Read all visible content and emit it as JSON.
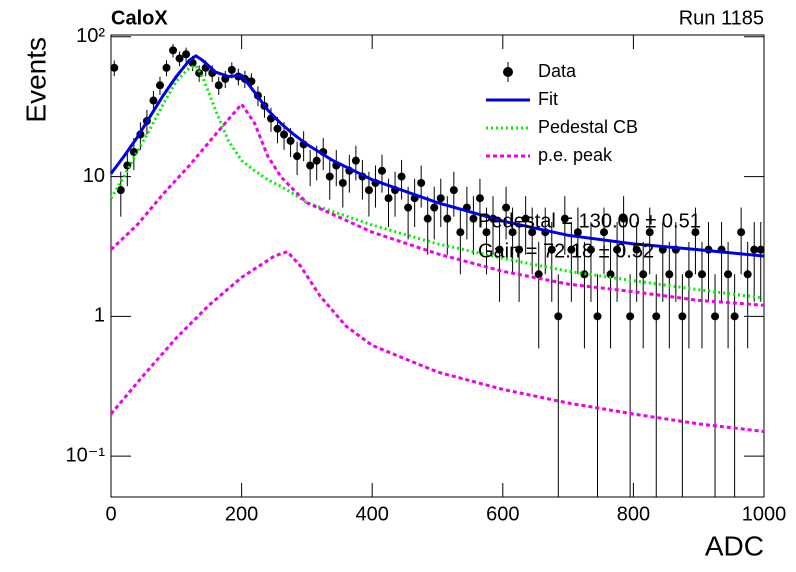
{
  "chart_data": {
    "type": "scatter",
    "title": "CaloX",
    "subtitle": "Run 1185",
    "x_label": "ADC",
    "y_label": "Events",
    "annotations": [
      "Pedestal = 130.00 ± 0.51",
      "Gain = 72.18 ± 0.52"
    ],
    "log_y": true,
    "legend": "upper right",
    "xlim": [
      0,
      1000
    ],
    "ylim": [
      0.051,
      103
    ],
    "xticks": [
      0,
      200,
      400,
      600,
      800,
      1000
    ],
    "yticks": [
      {
        "value": 0.1,
        "label": "10⁻¹"
      },
      1,
      10,
      {
        "value": 100,
        "label": "10²"
      }
    ],
    "series": [
      {
        "name": "Data",
        "kind": "points",
        "color": "#000000",
        "x": [
          5,
          15,
          25,
          35,
          45,
          55,
          65,
          75,
          85,
          95,
          105,
          115,
          125,
          135,
          145,
          155,
          165,
          175,
          185,
          195,
          205,
          215,
          225,
          235,
          245,
          255,
          265,
          275,
          285,
          295,
          305,
          315,
          325,
          335,
          345,
          355,
          365,
          375,
          385,
          395,
          405,
          415,
          425,
          435,
          445,
          455,
          465,
          475,
          485,
          495,
          505,
          515,
          525,
          535,
          545,
          555,
          565,
          575,
          585,
          595,
          605,
          615,
          625,
          635,
          645,
          655,
          665,
          675,
          685,
          695,
          705,
          715,
          725,
          735,
          745,
          755,
          765,
          775,
          785,
          795,
          805,
          815,
          825,
          835,
          845,
          855,
          865,
          875,
          885,
          895,
          905,
          915,
          925,
          935,
          945,
          955,
          965,
          975,
          985,
          995
        ],
        "values": [
          60,
          8,
          12,
          15,
          20,
          25,
          35,
          45,
          60,
          80,
          70,
          75,
          65,
          55,
          60,
          55,
          45,
          50,
          58,
          52,
          50,
          48,
          38,
          32,
          26,
          22,
          20,
          18,
          14,
          17,
          12,
          13,
          15,
          10,
          12,
          9,
          11,
          13,
          10,
          8,
          9,
          11,
          7,
          8,
          10,
          6,
          7,
          9,
          5,
          6,
          7,
          5,
          8,
          4,
          6,
          5,
          7,
          4,
          5,
          3,
          6,
          4,
          3,
          5,
          4,
          2,
          4,
          3,
          1,
          5,
          3,
          4,
          2,
          3,
          1,
          4,
          2,
          3,
          5,
          1,
          3,
          2,
          4,
          1,
          3,
          2,
          3,
          1,
          2,
          4,
          2,
          3,
          1,
          3,
          2,
          1,
          4,
          2,
          3,
          3
        ],
        "errors": [
          7.75,
          2.83,
          3.46,
          3.87,
          4.47,
          5,
          5.92,
          6.71,
          7.75,
          8.94,
          8.37,
          8.66,
          8.06,
          7.42,
          7.75,
          7.42,
          6.71,
          7.07,
          7.62,
          7.21,
          7.07,
          6.93,
          6.16,
          5.66,
          5.1,
          4.69,
          4.47,
          4.24,
          3.74,
          4.12,
          3.46,
          3.61,
          3.87,
          3.16,
          3.46,
          3,
          3.32,
          3.61,
          3.16,
          2.83,
          3,
          3.32,
          2.65,
          2.83,
          3.16,
          2.45,
          2.65,
          3,
          2.24,
          2.45,
          2.65,
          2.24,
          2.83,
          2,
          2.45,
          2.24,
          2.65,
          2,
          2.24,
          1.73,
          2.45,
          2,
          1.73,
          2.24,
          2,
          1.41,
          2,
          1.73,
          1,
          2.24,
          1.73,
          2,
          1.41,
          1.73,
          1,
          2,
          1.41,
          1.73,
          2.24,
          1,
          1.73,
          1.41,
          2,
          1,
          1.73,
          1.41,
          1.73,
          1,
          1.41,
          2,
          1.41,
          1.73,
          1,
          1.73,
          1.41,
          1,
          2,
          1.41,
          1.73,
          1.73
        ]
      },
      {
        "name": "Fit",
        "kind": "line",
        "color": "#0000e6",
        "dash": "",
        "x": [
          0,
          20,
          40,
          60,
          80,
          100,
          120,
          130,
          140,
          160,
          180,
          200,
          220,
          240,
          260,
          280,
          300,
          340,
          400,
          500,
          600,
          700,
          800,
          900,
          1000
        ],
        "values": [
          10.5,
          14,
          19,
          27,
          38,
          52,
          68,
          73,
          68,
          56,
          52,
          53,
          40,
          30,
          24,
          20,
          17,
          13,
          9.5,
          6.5,
          4.8,
          3.8,
          3.3,
          3.0,
          2.7
        ]
      },
      {
        "name": "Pedestal CB",
        "kind": "line",
        "color": "#00ee00",
        "dash": "2 3",
        "x": [
          0,
          20,
          40,
          60,
          80,
          100,
          120,
          130,
          140,
          160,
          180,
          200,
          220,
          240,
          260,
          280,
          300,
          400,
          500,
          600,
          700,
          800,
          900,
          1000
        ],
        "values": [
          7,
          10,
          15,
          22,
          33,
          48,
          60,
          62,
          52,
          30,
          18,
          13,
          11,
          9.5,
          8.5,
          7.5,
          6.5,
          4.5,
          3.3,
          2.6,
          2.1,
          1.8,
          1.55,
          1.35
        ]
      },
      {
        "name": "p.e. peak",
        "kind": "line",
        "color": "#ee00ee",
        "dash": "4 3",
        "x": [
          0,
          40,
          80,
          120,
          160,
          200,
          220,
          240,
          260,
          280,
          300,
          400,
          500,
          600,
          700,
          800,
          900,
          1000
        ],
        "values": [
          3,
          4.5,
          7.5,
          12,
          20,
          33,
          24,
          14,
          10,
          8,
          6.5,
          4,
          2.8,
          2.1,
          1.7,
          1.5,
          1.3,
          1.2
        ]
      },
      {
        "kind": "line",
        "color": "#ee00ee",
        "dash": "4 3",
        "x": [
          0,
          50,
          100,
          150,
          200,
          250,
          270,
          290,
          320,
          360,
          400,
          500,
          600,
          700,
          800,
          900,
          1000
        ],
        "values": [
          0.2,
          0.38,
          0.7,
          1.2,
          1.9,
          2.7,
          2.9,
          2.3,
          1.4,
          0.85,
          0.62,
          0.4,
          0.3,
          0.24,
          0.2,
          0.17,
          0.15
        ]
      }
    ]
  }
}
